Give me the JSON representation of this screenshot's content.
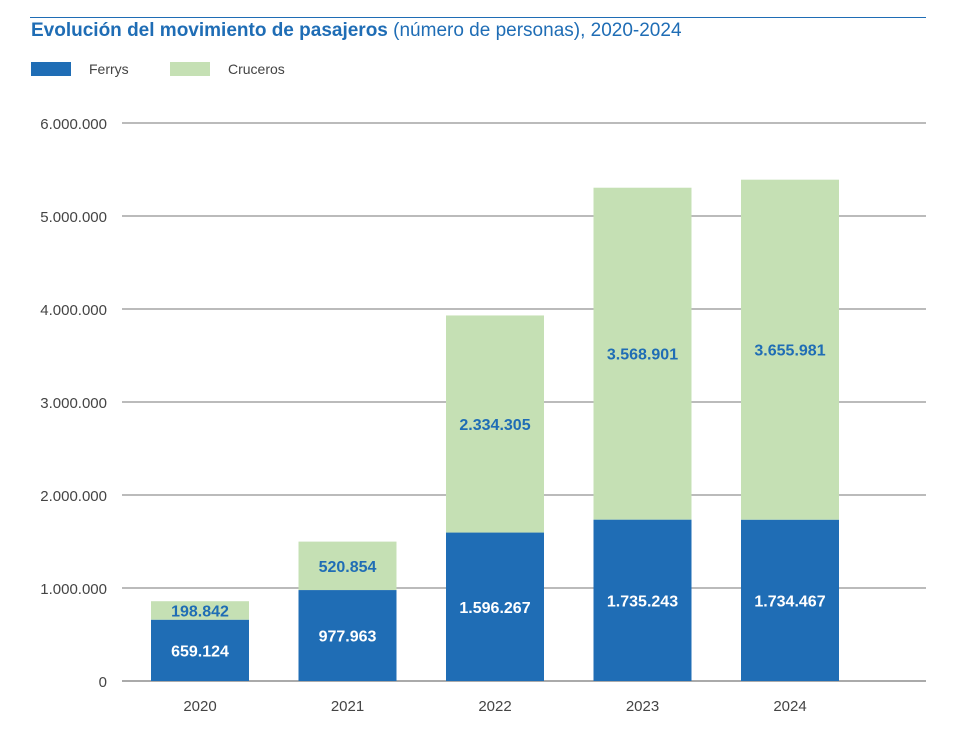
{
  "chart_data": {
    "type": "bar",
    "stacked": true,
    "title": "Evolución del movimiento de pasajeros",
    "subtitle": "(número de personas), 2020-2024",
    "categories": [
      "2020",
      "2021",
      "2022",
      "2023",
      "2024"
    ],
    "series": [
      {
        "name": "Ferrys",
        "values": [
          659124,
          977963,
          1596267,
          1735243,
          1734467
        ],
        "labels": [
          "659.124",
          "977.963",
          "1.596.267",
          "1.735.243",
          "1.734.467"
        ],
        "color": "#1f6db5",
        "label_color": "#ffffff"
      },
      {
        "name": "Cruceros",
        "values": [
          198842,
          520854,
          2334305,
          3568901,
          3655981
        ],
        "labels": [
          "198.842",
          "520.854",
          "2.334.305",
          "3.568.901",
          "3.655.981"
        ],
        "color": "#c5e0b4",
        "label_color": "#1f6db5"
      }
    ],
    "yticks": [
      0,
      1000000,
      2000000,
      3000000,
      4000000,
      5000000,
      6000000
    ],
    "ytick_labels": [
      "0",
      "1.000.000",
      "2.000.000",
      "3.000.000",
      "4.000.000",
      "5.000.000",
      "6.000.000"
    ],
    "ylim": [
      0,
      6000000
    ],
    "grid": true,
    "legend_position": "top-left"
  }
}
